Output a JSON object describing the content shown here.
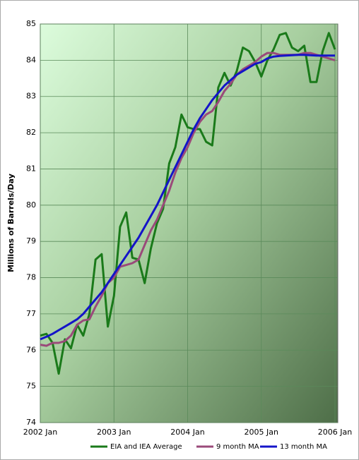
{
  "chart_data": {
    "type": "line",
    "y_label": "Millions of Barrels/Day",
    "x": [
      "2002-01",
      "2002-02",
      "2002-03",
      "2002-04",
      "2002-05",
      "2002-06",
      "2002-07",
      "2002-08",
      "2002-09",
      "2002-10",
      "2002-11",
      "2002-12",
      "2003-01",
      "2003-02",
      "2003-03",
      "2003-04",
      "2003-05",
      "2003-06",
      "2003-07",
      "2003-08",
      "2003-09",
      "2003-10",
      "2003-11",
      "2003-12",
      "2004-01",
      "2004-02",
      "2004-03",
      "2004-04",
      "2004-05",
      "2004-06",
      "2004-07",
      "2004-08",
      "2004-09",
      "2004-10",
      "2004-11",
      "2004-12",
      "2005-01",
      "2005-02",
      "2005-03",
      "2005-04",
      "2005-05",
      "2005-06",
      "2005-07",
      "2005-08",
      "2005-09",
      "2005-10",
      "2005-11",
      "2005-12",
      "2006-01"
    ],
    "series": [
      {
        "name": "EIA and IEA Average",
        "color": "#1a7a1a",
        "values": [
          76.4,
          76.45,
          76.2,
          75.35,
          76.3,
          76.05,
          76.7,
          76.4,
          77.0,
          78.5,
          78.65,
          76.65,
          77.5,
          79.4,
          79.8,
          78.55,
          78.5,
          77.85,
          78.8,
          79.5,
          79.9,
          81.15,
          81.6,
          82.5,
          82.15,
          82.1,
          82.1,
          81.75,
          81.65,
          83.25,
          83.65,
          83.3,
          83.7,
          84.35,
          84.25,
          83.95,
          83.55,
          84.0,
          84.3,
          84.7,
          84.75,
          84.35,
          84.25,
          84.4,
          83.4,
          83.4,
          84.25,
          84.75,
          84.3
        ]
      },
      {
        "name": "9 month MA",
        "color": "#9a4a7a",
        "values": [
          76.15,
          76.12,
          76.2,
          76.2,
          76.25,
          76.4,
          76.7,
          76.82,
          76.85,
          77.2,
          77.5,
          77.85,
          78.0,
          78.3,
          78.35,
          78.4,
          78.5,
          78.9,
          79.3,
          79.6,
          80.0,
          80.4,
          80.9,
          81.3,
          81.6,
          82.0,
          82.3,
          82.5,
          82.6,
          82.85,
          83.15,
          83.35,
          83.6,
          83.75,
          83.85,
          83.95,
          84.1,
          84.2,
          84.2,
          84.15,
          84.15,
          84.15,
          84.15,
          84.2,
          84.2,
          84.15,
          84.1,
          84.05,
          84.0
        ]
      },
      {
        "name": "13 month MA",
        "color": "#1414c8",
        "values": [
          76.3,
          76.37,
          76.45,
          76.55,
          76.65,
          76.75,
          76.85,
          77.0,
          77.2,
          77.4,
          77.6,
          77.85,
          78.1,
          78.35,
          78.6,
          78.85,
          79.1,
          79.4,
          79.7,
          80.0,
          80.35,
          80.7,
          81.05,
          81.4,
          81.75,
          82.1,
          82.4,
          82.65,
          82.9,
          83.1,
          83.3,
          83.45,
          83.6,
          83.7,
          83.8,
          83.9,
          83.95,
          84.05,
          84.1,
          84.12,
          84.13,
          84.14,
          84.15,
          84.15,
          84.14,
          84.13,
          84.13,
          84.13,
          84.13
        ]
      }
    ],
    "xlim": [
      "2002-01",
      "2006-01"
    ],
    "xticks": [
      {
        "value": "2002-01",
        "label": "2002 Jan"
      },
      {
        "value": "2003-01",
        "label": "2003 Jan"
      },
      {
        "value": "2004-01",
        "label": "2004 Jan"
      },
      {
        "value": "2005-01",
        "label": "2005 Jan"
      },
      {
        "value": "2006-01",
        "label": "2006 Jan"
      }
    ],
    "ylim": [
      74,
      85
    ],
    "yticks": [
      74,
      75,
      76,
      77,
      78,
      79,
      80,
      81,
      82,
      83,
      84,
      85
    ],
    "grid": true,
    "legend": "bottom"
  }
}
